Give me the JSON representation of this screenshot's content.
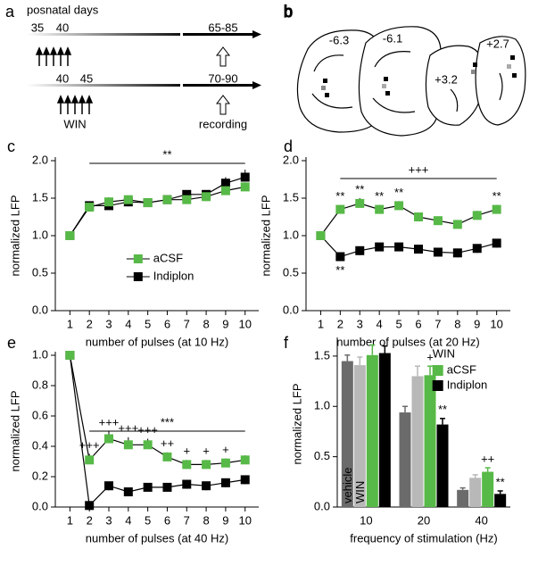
{
  "panel_a": {
    "label": "a",
    "timeline_label": "posnatal days",
    "row1": {
      "start": "35",
      "end": "40",
      "adult": "65-85"
    },
    "row2": {
      "start": "40",
      "end": "45",
      "treatment": "WIN",
      "adult": "70-90",
      "procedure": "recording"
    }
  },
  "panel_b": {
    "label": "b",
    "sections": [
      "-6.3",
      "-6.1",
      "+3.2",
      "+2.7"
    ]
  },
  "chart_data": [
    {
      "type": "line",
      "panel_label": "c",
      "x_label": "number of pulses (at 10 Hz)",
      "y_label": "normalized LFP",
      "x": [
        1,
        2,
        3,
        4,
        5,
        6,
        7,
        8,
        9,
        10
      ],
      "xlim": [
        0.25,
        10.7
      ],
      "xticks": [
        1,
        2,
        3,
        4,
        5,
        6,
        7,
        8,
        9,
        10
      ],
      "ylim": [
        0,
        2
      ],
      "yticks": [
        {
          "value": 0,
          "label": "0.0"
        },
        {
          "value": 0.5,
          "label": "0.5"
        },
        {
          "value": 1,
          "label": "1.0"
        },
        {
          "value": 1.5,
          "label": "1.5"
        },
        {
          "value": 2,
          "label": "2.0"
        }
      ],
      "legend": "lower right",
      "annotations": [
        {
          "text": "**"
        }
      ],
      "series": [
        {
          "name": "aCSF",
          "color": "#57b947",
          "values": [
            1.0,
            1.38,
            1.45,
            1.48,
            1.44,
            1.48,
            1.48,
            1.52,
            1.6,
            1.65
          ],
          "errors": [
            0,
            0.05,
            0.06,
            0.05,
            0.04,
            0.05,
            0.05,
            0.05,
            0.06,
            0.06
          ],
          "error_direction": "up"
        },
        {
          "name": "Indiplon",
          "color": "#000000",
          "values": [
            1.0,
            1.4,
            1.4,
            1.45,
            1.44,
            1.48,
            1.55,
            1.55,
            1.7,
            1.78
          ],
          "errors": [
            0,
            0.05,
            0.05,
            0.06,
            0.04,
            0.05,
            0.05,
            0.05,
            0.08,
            0.1
          ],
          "error_direction": "up"
        }
      ]
    },
    {
      "type": "line",
      "panel_label": "d",
      "x_label": "number of pulses (at 20 Hz)",
      "y_label": "normalized LFP",
      "x": [
        1,
        2,
        3,
        4,
        5,
        6,
        7,
        8,
        9,
        10
      ],
      "xlim": [
        0.25,
        10.7
      ],
      "xticks": [
        1,
        2,
        3,
        4,
        5,
        6,
        7,
        8,
        9,
        10
      ],
      "ylim": [
        0,
        2
      ],
      "yticks": [
        {
          "value": 0,
          "label": "0.0"
        },
        {
          "value": 0.5,
          "label": "0.5"
        },
        {
          "value": 1,
          "label": "1.0"
        },
        {
          "value": 1.5,
          "label": "1.5"
        },
        {
          "value": 2,
          "label": "2.0"
        }
      ],
      "annotations": [
        {
          "text": "+++"
        }
      ],
      "series": [
        {
          "color": "#57b947",
          "values": [
            1.0,
            1.35,
            1.43,
            1.35,
            1.4,
            1.25,
            1.2,
            1.15,
            1.27,
            1.35
          ],
          "errors": [
            0,
            0.06,
            0.07,
            0.06,
            0.06,
            0.05,
            0.05,
            0.05,
            0.06,
            0.06
          ],
          "error_direction": "up",
          "significance": [
            null,
            "**",
            "**",
            "**",
            "**",
            null,
            null,
            null,
            null,
            "**"
          ],
          "significance_position": "above"
        },
        {
          "color": "#000000",
          "values": [
            1.0,
            0.72,
            0.8,
            0.85,
            0.85,
            0.82,
            0.78,
            0.77,
            0.83,
            0.9
          ],
          "errors": [
            0,
            0.05,
            0.06,
            0.05,
            0.05,
            0.05,
            0.05,
            0.06,
            0.06,
            0.06
          ],
          "error_direction": "down",
          "significance": [
            null,
            "**",
            null,
            null,
            null,
            null,
            null,
            null,
            null,
            null
          ],
          "significance_position": "below"
        }
      ]
    },
    {
      "type": "line",
      "panel_label": "e",
      "x_label": "number of pulses (at 40 Hz)",
      "y_label": "normalized LFP",
      "x": [
        1,
        2,
        3,
        4,
        5,
        6,
        7,
        8,
        9,
        10
      ],
      "xlim": [
        0.25,
        10.7
      ],
      "xticks": [
        1,
        2,
        3,
        4,
        5,
        6,
        7,
        8,
        9,
        10
      ],
      "ylim": [
        0,
        1
      ],
      "yticks": [
        {
          "value": 0,
          "label": "0.0"
        },
        {
          "value": 0.2,
          "label": "0.2"
        },
        {
          "value": 0.4,
          "label": "0.4"
        },
        {
          "value": 0.6,
          "label": "0.6"
        },
        {
          "value": 0.8,
          "label": "0.8"
        },
        {
          "value": 1,
          "label": "1.0"
        }
      ],
      "annotations": [
        {
          "text": "***"
        }
      ],
      "series": [
        {
          "color": "#57b947",
          "values": [
            1.0,
            0.31,
            0.45,
            0.41,
            0.41,
            0.33,
            0.28,
            0.28,
            0.29,
            0.31
          ],
          "errors": [
            0,
            0.04,
            0.05,
            0.05,
            0.04,
            0.03,
            0.03,
            0.03,
            0.03,
            0.03
          ],
          "error_direction": "up",
          "significance": [
            null,
            "+++",
            "+++",
            "+++",
            "+++",
            "++",
            "+",
            "+",
            "+",
            null
          ],
          "significance_position": "above"
        },
        {
          "color": "#000000",
          "values": [
            1.0,
            0.01,
            0.14,
            0.1,
            0.13,
            0.13,
            0.15,
            0.14,
            0.16,
            0.18
          ],
          "errors": [
            0,
            0.02,
            0.03,
            0.02,
            0.02,
            0.02,
            0.03,
            0.03,
            0.03,
            0.03
          ],
          "error_direction": "down"
        }
      ]
    },
    {
      "type": "bar",
      "panel_label": "f",
      "x_label": "frequency of stimulation (Hz)",
      "y_label": "normalized LFP",
      "categories": [
        "10",
        "20",
        "40"
      ],
      "ylim": [
        0,
        1.65
      ],
      "yticks": [
        {
          "value": 0,
          "label": "0.0"
        },
        {
          "value": 0.5,
          "label": "0.5"
        },
        {
          "value": 1,
          "label": "1.0"
        },
        {
          "value": 1.5,
          "label": "1.5"
        }
      ],
      "legend_title": "WIN",
      "series": [
        {
          "name": "vehicle",
          "color": "#6b6b6b",
          "values": [
            1.45,
            0.94,
            0.17
          ],
          "errors": [
            0.06,
            0.06,
            0.02
          ],
          "label_position": "inside"
        },
        {
          "name": "WIN",
          "color": "#b8b8b8",
          "values": [
            1.41,
            1.3,
            0.29
          ],
          "errors": [
            0.08,
            0.1,
            0.03
          ],
          "label_position": "inside"
        },
        {
          "name": "aCSF",
          "color": "#57b947",
          "values": [
            1.51,
            1.31,
            0.35
          ],
          "errors": [
            0.1,
            0.09,
            0.04
          ],
          "label_position": "legend",
          "significance": [
            null,
            "+",
            "++"
          ]
        },
        {
          "name": "Indiplon",
          "color": "#000000",
          "values": [
            1.53,
            0.82,
            0.13
          ],
          "errors": [
            0.07,
            0.06,
            0.03
          ],
          "label_position": "legend",
          "significance": [
            null,
            "**",
            "**"
          ]
        }
      ]
    }
  ]
}
